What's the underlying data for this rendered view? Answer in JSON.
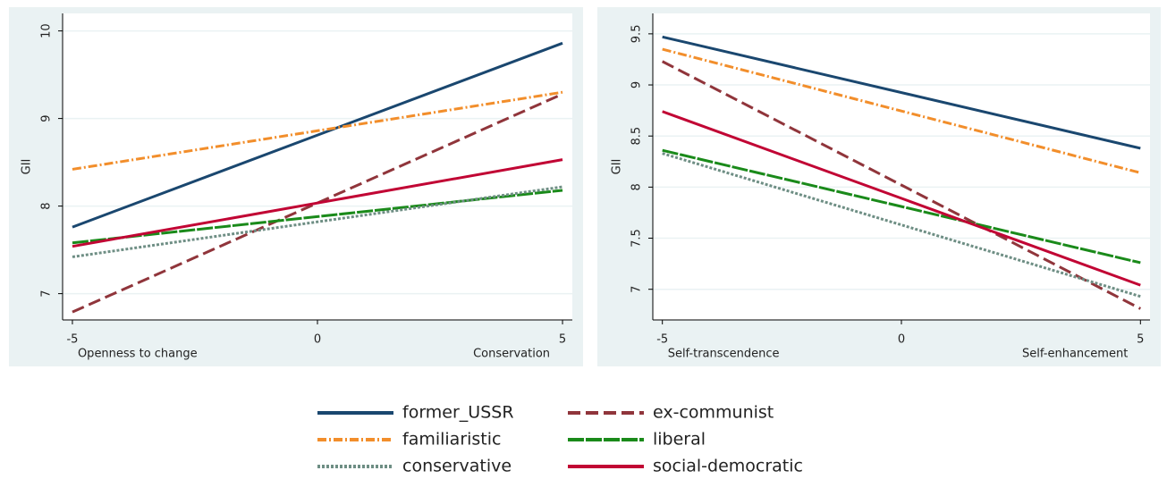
{
  "charts": [
    {
      "type": "line",
      "y_label": "GII",
      "x_left_label": "Openness to change",
      "x_right_label": "Conservation",
      "x": [
        -5,
        5
      ],
      "xlim": [
        -5.2,
        5.2
      ],
      "xticks": [
        -5,
        0,
        5
      ],
      "ylim": [
        6.7,
        10.2
      ],
      "yticks": [
        7,
        8,
        9,
        10
      ],
      "grid": true,
      "series": [
        {
          "name": "former_USSR",
          "color": "#1a476f",
          "dash": "solid",
          "values": [
            7.76,
            9.86
          ]
        },
        {
          "name": "ex-communist",
          "color": "#90353b",
          "dash": "dashed",
          "values": [
            6.79,
            9.28
          ]
        },
        {
          "name": "familiaristic",
          "color": "#f28e2b",
          "dash": "dashdot",
          "values": [
            8.42,
            9.3
          ]
        },
        {
          "name": "liberal",
          "color": "#1a8a1a",
          "dash": "longdash",
          "values": [
            7.58,
            8.18
          ]
        },
        {
          "name": "conservative",
          "color": "#6e8e84",
          "dash": "dotted",
          "values": [
            7.42,
            8.22
          ]
        },
        {
          "name": "social-democratic",
          "color": "#c10534",
          "dash": "solid",
          "values": [
            7.54,
            8.53
          ]
        }
      ]
    },
    {
      "type": "line",
      "y_label": "GII",
      "x_left_label": "Self-transcendence",
      "x_right_label": "Self-enhancement",
      "x": [
        -5,
        5
      ],
      "xlim": [
        -5.2,
        5.2
      ],
      "xticks": [
        -5,
        0,
        5
      ],
      "ylim": [
        6.7,
        9.7
      ],
      "yticks": [
        7,
        7.5,
        8,
        8.5,
        9,
        9.5
      ],
      "grid": true,
      "series": [
        {
          "color": "#1a476f",
          "dash": "solid",
          "values": [
            9.47,
            8.38
          ]
        },
        {
          "color": "#90353b",
          "dash": "dashed",
          "values": [
            9.23,
            6.81
          ]
        },
        {
          "color": "#f28e2b",
          "dash": "dashdot",
          "values": [
            9.35,
            8.14
          ]
        },
        {
          "color": "#1a8a1a",
          "dash": "longdash",
          "values": [
            8.36,
            7.26
          ]
        },
        {
          "color": "#6e8e84",
          "dash": "dotted",
          "values": [
            8.33,
            6.93
          ]
        },
        {
          "color": "#c10534",
          "dash": "solid",
          "values": [
            8.74,
            7.04
          ]
        }
      ]
    }
  ]
}
